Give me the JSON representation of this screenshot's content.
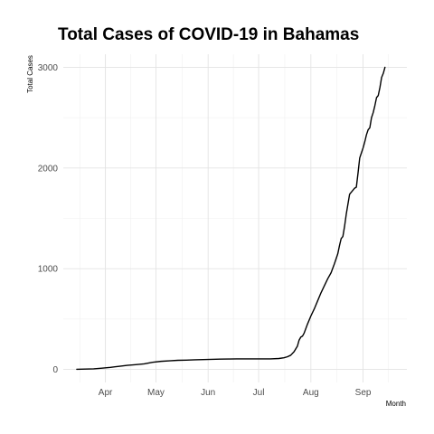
{
  "chart_data": {
    "type": "line",
    "title": "Total Cases of COVID-19 in Bahamas",
    "xlabel": "Month",
    "ylabel": "Total Cases",
    "x_ticks": [
      {
        "date": "2020-04-01",
        "label": "Apr"
      },
      {
        "date": "2020-05-01",
        "label": "May"
      },
      {
        "date": "2020-06-01",
        "label": "Jun"
      },
      {
        "date": "2020-07-01",
        "label": "Jul"
      },
      {
        "date": "2020-08-01",
        "label": "Aug"
      },
      {
        "date": "2020-09-01",
        "label": "Sep"
      }
    ],
    "y_ticks": [
      0,
      1000,
      2000,
      3000
    ],
    "xlim": [
      "2020-03-07",
      "2020-09-27"
    ],
    "ylim": [
      -130,
      3130
    ],
    "grid": true,
    "series": [
      {
        "color": "#000000",
        "points": [
          [
            "2020-03-15",
            1
          ],
          [
            "2020-03-20",
            3
          ],
          [
            "2020-03-25",
            5
          ],
          [
            "2020-03-30",
            12
          ],
          [
            "2020-04-04",
            20
          ],
          [
            "2020-04-09",
            30
          ],
          [
            "2020-04-14",
            40
          ],
          [
            "2020-04-19",
            47
          ],
          [
            "2020-04-24",
            55
          ],
          [
            "2020-04-29",
            70
          ],
          [
            "2020-05-04",
            80
          ],
          [
            "2020-05-09",
            85
          ],
          [
            "2020-05-14",
            90
          ],
          [
            "2020-05-19",
            92
          ],
          [
            "2020-05-24",
            95
          ],
          [
            "2020-05-29",
            97
          ],
          [
            "2020-06-03",
            100
          ],
          [
            "2020-06-08",
            102
          ],
          [
            "2020-06-13",
            103
          ],
          [
            "2020-06-18",
            104
          ],
          [
            "2020-06-23",
            104
          ],
          [
            "2020-06-28",
            104
          ],
          [
            "2020-07-03",
            104
          ],
          [
            "2020-07-08",
            104
          ],
          [
            "2020-07-13",
            108
          ],
          [
            "2020-07-16",
            115
          ],
          [
            "2020-07-18",
            125
          ],
          [
            "2020-07-20",
            140
          ],
          [
            "2020-07-22",
            175
          ],
          [
            "2020-07-24",
            230
          ],
          [
            "2020-07-25",
            290
          ],
          [
            "2020-07-26",
            320
          ],
          [
            "2020-07-27",
            330
          ],
          [
            "2020-07-28",
            360
          ],
          [
            "2020-07-30",
            450
          ],
          [
            "2020-08-01",
            530
          ],
          [
            "2020-08-03",
            600
          ],
          [
            "2020-08-05",
            680
          ],
          [
            "2020-08-07",
            760
          ],
          [
            "2020-08-09",
            830
          ],
          [
            "2020-08-11",
            900
          ],
          [
            "2020-08-13",
            960
          ],
          [
            "2020-08-15",
            1050
          ],
          [
            "2020-08-17",
            1150
          ],
          [
            "2020-08-18",
            1230
          ],
          [
            "2020-08-19",
            1300
          ],
          [
            "2020-08-20",
            1320
          ],
          [
            "2020-08-21",
            1420
          ],
          [
            "2020-08-22",
            1540
          ],
          [
            "2020-08-23",
            1640
          ],
          [
            "2020-08-24",
            1740
          ],
          [
            "2020-08-25",
            1760
          ],
          [
            "2020-08-26",
            1780
          ],
          [
            "2020-08-27",
            1800
          ],
          [
            "2020-08-28",
            1810
          ],
          [
            "2020-08-29",
            1950
          ],
          [
            "2020-08-30",
            2100
          ],
          [
            "2020-08-31",
            2150
          ],
          [
            "2020-09-01",
            2200
          ],
          [
            "2020-09-02",
            2260
          ],
          [
            "2020-09-03",
            2330
          ],
          [
            "2020-09-04",
            2380
          ],
          [
            "2020-09-05",
            2400
          ],
          [
            "2020-09-06",
            2500
          ],
          [
            "2020-09-07",
            2550
          ],
          [
            "2020-09-08",
            2620
          ],
          [
            "2020-09-09",
            2700
          ],
          [
            "2020-09-10",
            2720
          ],
          [
            "2020-09-11",
            2800
          ],
          [
            "2020-09-12",
            2900
          ],
          [
            "2020-09-13",
            2940
          ],
          [
            "2020-09-14",
            3000
          ]
        ]
      }
    ]
  }
}
